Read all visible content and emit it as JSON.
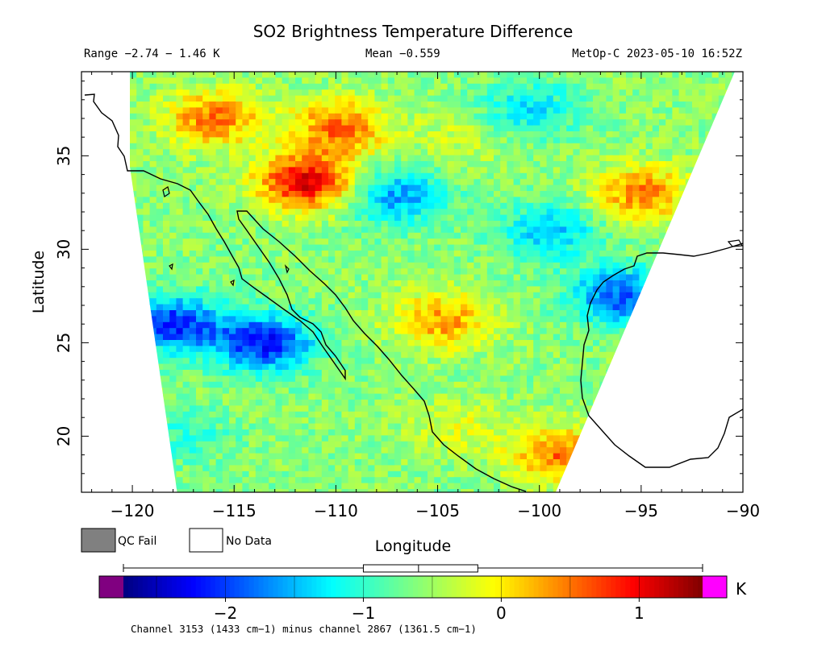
{
  "header": {
    "title": "SO2 Brightness Temperature Difference",
    "range_label": "Range −2.74 − 1.46 K",
    "mean_label": "Mean −0.559",
    "satellite_label": "MetOp-C 2023-05-10 16:52Z"
  },
  "legend": {
    "qc_fail_label": "QC Fail",
    "no_data_label": "No Data",
    "qc_fail_color": "#808080",
    "no_data_color": "#ffffff"
  },
  "colorbar": {
    "unit": "K",
    "vmin": -2.74,
    "vmax": 1.46,
    "tick_values": [
      -2,
      -1,
      0,
      1
    ],
    "tick_labels": [
      "−2",
      "−1",
      "0",
      "1"
    ],
    "under_color": "#800080",
    "over_color": "#ff00ff",
    "box_range": [
      -1.0,
      -0.17
    ],
    "box_median": -0.6,
    "whisker_range": [
      -2.74,
      1.46
    ]
  },
  "footer": {
    "note": "Channel 3153 (1433 cm−1) minus channel 2867 (1361.5 cm−1)"
  },
  "chart_data": {
    "type": "heatmap",
    "title": "SO2 Brightness Temperature Difference",
    "xlabel": "Longitude",
    "ylabel": "Latitude",
    "xlim": [
      -122.5,
      -90
    ],
    "ylim": [
      17,
      39.5
    ],
    "x_ticks": [
      -120,
      -115,
      -110,
      -105,
      -100,
      -95,
      -90
    ],
    "x_tick_labels": [
      "−120",
      "−115",
      "−110",
      "−105",
      "−100",
      "−95",
      "−90"
    ],
    "y_ticks": [
      20,
      25,
      30,
      35
    ],
    "y_tick_labels": [
      "20",
      "25",
      "30",
      "35"
    ],
    "swath": {
      "lat_top": 39.5,
      "lat_bottom": 17,
      "lon_left_top": -120.8,
      "lon_left_bottom": -117.8,
      "lon_right_top": -90.4,
      "lon_right_bottom": -99.2
    },
    "background_level": -0.6,
    "features": [
      {
        "lon": -111.5,
        "lat": 33.6,
        "value": 1.1
      },
      {
        "lon": -109.8,
        "lat": 36.5,
        "value": 0.55
      },
      {
        "lon": -116.0,
        "lat": 37.0,
        "value": 0.5
      },
      {
        "lon": -104.8,
        "lat": 26.2,
        "value": 0.35
      },
      {
        "lon": -107.0,
        "lat": 32.8,
        "value": -1.6
      },
      {
        "lon": -99.5,
        "lat": 31.0,
        "value": -1.45
      },
      {
        "lon": -100.5,
        "lat": 37.5,
        "value": -1.3
      },
      {
        "lon": -113.5,
        "lat": 25.0,
        "value": -2.2
      },
      {
        "lon": -118.0,
        "lat": 26.0,
        "value": -2.1
      },
      {
        "lon": -96.0,
        "lat": 27.5,
        "value": -1.9
      },
      {
        "lon": -99.0,
        "lat": 19.0,
        "value": 0.5
      },
      {
        "lon": -95.0,
        "lat": 33.0,
        "value": 0.45
      },
      {
        "lon": -104.0,
        "lat": 36.0,
        "value": -0.3
      },
      {
        "lon": -104.0,
        "lat": 20.5,
        "value": -0.2
      },
      {
        "lon": -117.5,
        "lat": 20.0,
        "value": -1.0
      }
    ]
  }
}
